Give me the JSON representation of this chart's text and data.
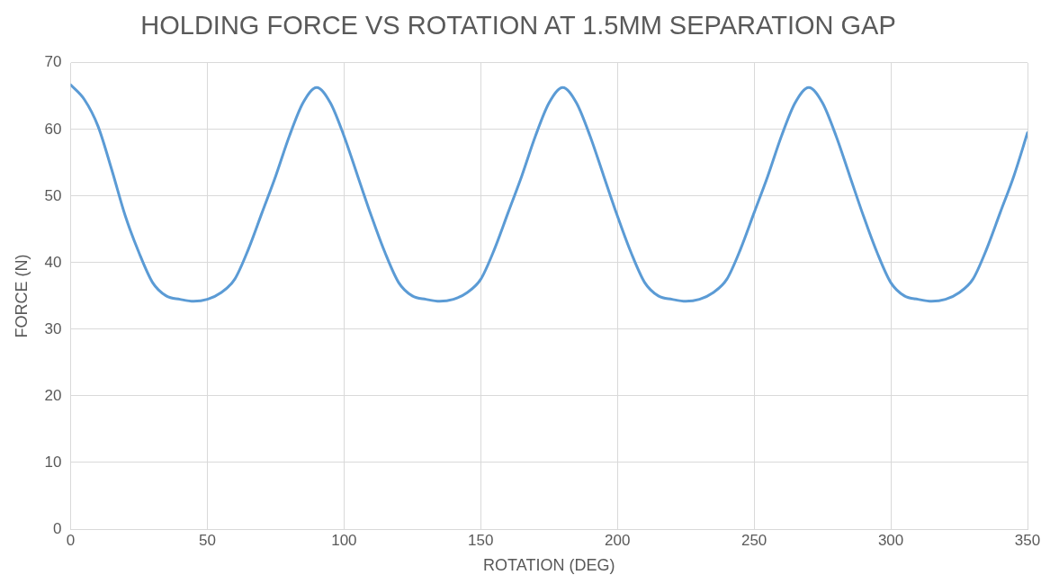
{
  "chart_data": {
    "type": "line",
    "title": "HOLDING FORCE VS ROTATION AT 1.5MM SEPARATION GAP",
    "xlabel": "ROTATION (DEG)",
    "ylabel": "FORCE (N)",
    "x": [
      0,
      5,
      10,
      15,
      20,
      25,
      30,
      35,
      40,
      45,
      50,
      55,
      60,
      65,
      70,
      75,
      80,
      85,
      90,
      95,
      100,
      105,
      110,
      115,
      120,
      125,
      130,
      135,
      140,
      145,
      150,
      155,
      160,
      165,
      170,
      175,
      180,
      185,
      190,
      195,
      200,
      205,
      210,
      215,
      220,
      225,
      230,
      235,
      240,
      245,
      250,
      255,
      260,
      265,
      270,
      275,
      280,
      285,
      290,
      295,
      300,
      305,
      310,
      315,
      320,
      325,
      330,
      335,
      340,
      345,
      350
    ],
    "series": [
      {
        "color": "#5b9bd5",
        "values": [
          66.7,
          64.5,
          60.5,
          54,
          47,
          41.5,
          37,
          35,
          34.5,
          34.2,
          34.5,
          35.5,
          37.5,
          42,
          47.5,
          53,
          59,
          64,
          66.3,
          64,
          59,
          53,
          47,
          41.5,
          37,
          35,
          34.5,
          34.2,
          34.5,
          35.5,
          37.5,
          42,
          47.5,
          53,
          59,
          64,
          66.3,
          64,
          59,
          53,
          47,
          41.5,
          37,
          35,
          34.5,
          34.2,
          34.5,
          35.5,
          37.5,
          42,
          47.5,
          53,
          59,
          64,
          66.3,
          64,
          59,
          53,
          47,
          41.5,
          37,
          35,
          34.5,
          34.2,
          34.5,
          35.5,
          37.5,
          42,
          47.5,
          53,
          59.5
        ]
      }
    ],
    "xlim": [
      0,
      350
    ],
    "xticks": [
      0,
      50,
      100,
      150,
      200,
      250,
      300,
      350
    ],
    "ylim": [
      0,
      70
    ],
    "yticks": [
      0,
      10,
      20,
      30,
      40,
      50,
      60,
      70
    ],
    "grid": true,
    "marker": "none",
    "line_style": "solid",
    "legend": false
  }
}
